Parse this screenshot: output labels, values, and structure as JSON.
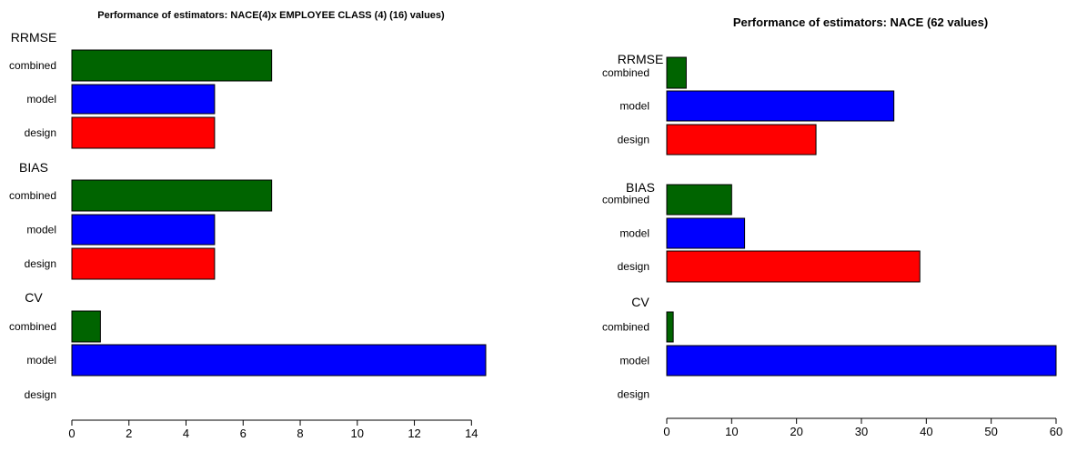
{
  "chart_data": [
    {
      "type": "bar",
      "orientation": "horizontal",
      "title": "Performance of estimators: NACE(4)x EMPLOYEE CLASS (4) (16) values)",
      "xlim": [
        0,
        14.5
      ],
      "xticks": [
        0,
        2,
        4,
        6,
        8,
        10,
        12,
        14
      ],
      "groups": [
        {
          "name": "RRMSE",
          "bars": [
            {
              "label": "combined",
              "value": 7,
              "color": "#006400"
            },
            {
              "label": "model",
              "value": 5,
              "color": "#0000ff"
            },
            {
              "label": "design",
              "value": 5,
              "color": "#ff0000"
            }
          ]
        },
        {
          "name": "BIAS",
          "bars": [
            {
              "label": "combined",
              "value": 7,
              "color": "#006400"
            },
            {
              "label": "model",
              "value": 5,
              "color": "#0000ff"
            },
            {
              "label": "design",
              "value": 5,
              "color": "#ff0000"
            }
          ]
        },
        {
          "name": "CV",
          "bars": [
            {
              "label": "combined",
              "value": 1,
              "color": "#006400"
            },
            {
              "label": "model",
              "value": 14.5,
              "color": "#0000ff"
            },
            {
              "label": "design",
              "value": 0,
              "color": "#ff0000"
            }
          ]
        }
      ]
    },
    {
      "type": "bar",
      "orientation": "horizontal",
      "title": "Performance of estimators: NACE (62 values)",
      "xlim": [
        0,
        60
      ],
      "xticks": [
        0,
        10,
        20,
        30,
        40,
        50,
        60
      ],
      "groups": [
        {
          "name": "RRMSE",
          "bars": [
            {
              "label": "combined",
              "value": 3,
              "color": "#006400"
            },
            {
              "label": "model",
              "value": 35,
              "color": "#0000ff"
            },
            {
              "label": "design",
              "value": 23,
              "color": "#ff0000"
            }
          ]
        },
        {
          "name": "BIAS",
          "bars": [
            {
              "label": "combined",
              "value": 10,
              "color": "#006400"
            },
            {
              "label": "model",
              "value": 12,
              "color": "#0000ff"
            },
            {
              "label": "design",
              "value": 39,
              "color": "#ff0000"
            }
          ]
        },
        {
          "name": "CV",
          "bars": [
            {
              "label": "combined",
              "value": 1,
              "color": "#006400"
            },
            {
              "label": "model",
              "value": 60,
              "color": "#0000ff"
            },
            {
              "label": "design",
              "value": 0,
              "color": "#ff0000"
            }
          ]
        }
      ]
    }
  ]
}
